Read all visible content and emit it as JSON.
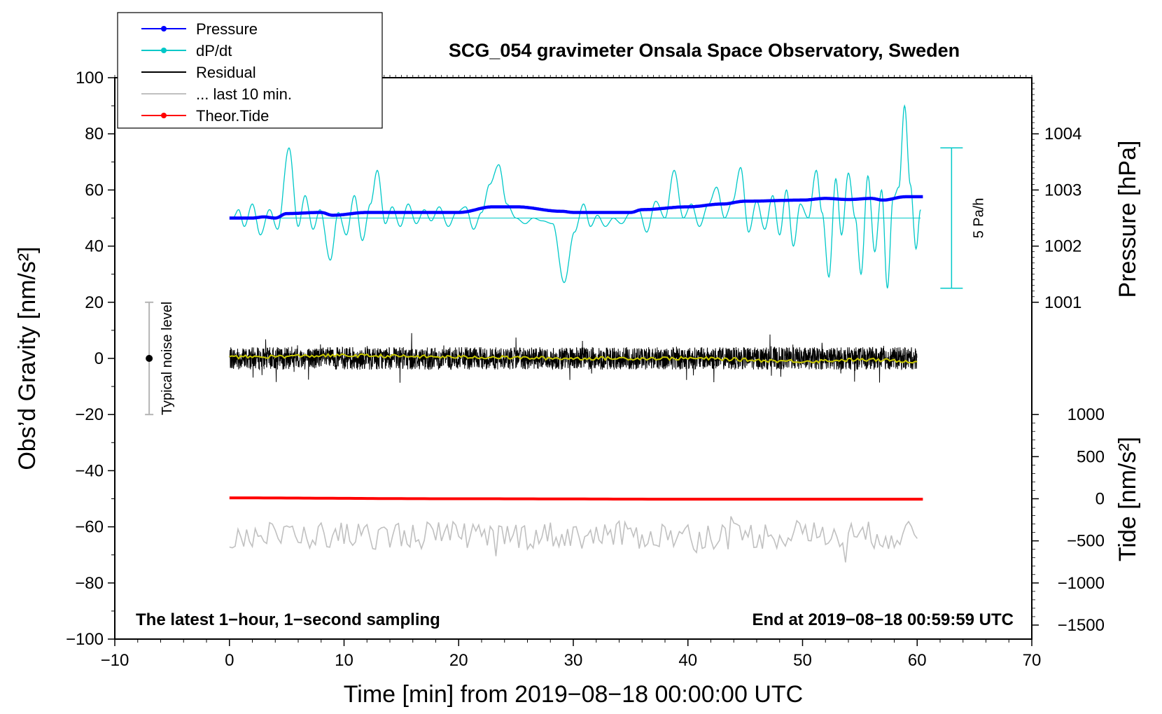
{
  "chart_data": {
    "type": "line",
    "title": "SCG_054 gravimeter Onsala Space Observatory, Sweden",
    "xlabel": "Time [min] from 2019−08−18 00:00:00 UTC",
    "ylabel_left": "Obs’d Gravity [nm/s²]",
    "ylabel_pressure": "Pressure [hPa]",
    "ylabel_tide": "Tide [nm/s²]",
    "xlim": [
      -10,
      70
    ],
    "xticks": [
      -10,
      0,
      10,
      20,
      30,
      40,
      50,
      60,
      70
    ],
    "xtick_labels": [
      "−10",
      "0",
      "10",
      "20",
      "30",
      "40",
      "50",
      "60",
      "70"
    ],
    "ylim": [
      -100,
      100
    ],
    "yticks": [
      -100,
      -80,
      -60,
      -40,
      -20,
      0,
      20,
      40,
      60,
      80,
      100
    ],
    "ytick_labels": [
      "−100",
      "−80",
      "−60",
      "−40",
      "−20",
      "0",
      "20",
      "40",
      "60",
      "80",
      "100"
    ],
    "pressure_axis": {
      "ticks": [
        1001,
        1002,
        1003,
        1004
      ],
      "tick_labels": [
        "1001",
        "1002",
        "1003",
        "1004"
      ],
      "gravity_at_1001": 20,
      "gravity_per_hpa": 20
    },
    "tide_axis": {
      "ticks": [
        -1500,
        -1000,
        -500,
        0,
        500,
        1000
      ],
      "tick_labels": [
        "−1500",
        "−1000",
        "−500",
        "0",
        "500",
        "1000"
      ],
      "gravity_at_zero": -50,
      "gravity_per_nms2": 0.03
    },
    "legend": {
      "placement": "top-left",
      "entries": [
        {
          "label": "Pressure",
          "color": "#0000ff",
          "marker": true
        },
        {
          "label": "dP/dt",
          "color": "#00c8c8",
          "marker": true
        },
        {
          "label": "Residual",
          "color": "#000000",
          "marker": false
        },
        {
          "label": "... last 10 min.",
          "color": "#c0c0c0",
          "marker": false
        },
        {
          "label": "Theor.Tide",
          "color": "#ff0000",
          "marker": true
        }
      ]
    },
    "series": [
      {
        "name": "Pressure",
        "unit": "hPa",
        "color": "#0000ff",
        "x": [
          0,
          2,
          3,
          4,
          5,
          8,
          9,
          12,
          15,
          20,
          23,
          25,
          29,
          30,
          35,
          36,
          40,
          43,
          45,
          50,
          52,
          54,
          56,
          57,
          59,
          60.5
        ],
        "values": [
          1002.5,
          1002.5,
          1002.52,
          1002.5,
          1002.58,
          1002.6,
          1002.55,
          1002.6,
          1002.6,
          1002.6,
          1002.7,
          1002.7,
          1002.62,
          1002.6,
          1002.6,
          1002.65,
          1002.7,
          1002.75,
          1002.8,
          1002.82,
          1002.85,
          1002.83,
          1002.85,
          1002.82,
          1002.88,
          1002.88
        ]
      },
      {
        "name": "dP/dt",
        "unit": "nm/s² (plot scale)",
        "color": "#00c8c8",
        "baseline": 50,
        "x": [
          0.3,
          0.8,
          1.3,
          2.0,
          2.7,
          3.5,
          4.2,
          5.2,
          6.0,
          6.6,
          7.3,
          7.9,
          8.8,
          9.5,
          10.2,
          10.9,
          11.6,
          12.3,
          12.9,
          13.6,
          14.2,
          14.9,
          15.6,
          16.3,
          17.0,
          17.6,
          18.3,
          19.1,
          19.8,
          20.6,
          21.3,
          22.0,
          22.7,
          23.5,
          24.2,
          25.0,
          25.8,
          26.5,
          27.3,
          28.2,
          29.2,
          30.1,
          30.9,
          31.5,
          32.1,
          32.8,
          33.5,
          34.2,
          35.0,
          35.7,
          36.4,
          37.2,
          38.0,
          38.8,
          39.6,
          40.3,
          41.0,
          41.8,
          42.5,
          43.2,
          43.9,
          44.6,
          45.3,
          46.0,
          46.7,
          47.4,
          48.0,
          48.6,
          49.2,
          49.8,
          50.5,
          51.2,
          51.7,
          52.3,
          52.9,
          53.4,
          54.0,
          54.6,
          55.1,
          55.7,
          56.3,
          56.9,
          57.4,
          57.9,
          58.4,
          58.9,
          59.4,
          59.9,
          60.3
        ],
        "values": [
          50,
          53,
          47,
          55,
          44,
          53,
          46,
          75,
          47,
          58,
          46,
          53,
          35,
          52,
          44,
          58,
          42,
          55,
          67,
          48,
          54,
          47,
          55,
          48,
          53,
          49,
          54,
          47,
          52,
          54,
          46,
          52,
          62,
          69,
          55,
          50,
          48,
          50,
          49,
          48,
          27,
          45,
          55,
          47,
          51,
          47,
          50,
          48,
          52,
          53,
          45,
          56,
          50,
          67,
          50,
          55,
          47,
          55,
          61,
          50,
          56,
          68,
          45,
          56,
          46,
          58,
          44,
          60,
          40,
          55,
          50,
          67,
          52,
          29,
          64,
          44,
          66,
          50,
          30,
          65,
          38,
          60,
          25,
          57,
          61,
          90,
          62,
          39,
          53
        ]
      },
      {
        "name": "Residual",
        "unit": "nm/s²",
        "color": "#000000",
        "x_range": [
          0,
          60
        ],
        "mean": 0,
        "amplitude": 4,
        "max_excursion": 9
      },
      {
        "name": "Residual smoothed",
        "unit": "nm/s²",
        "color": "#c8c800",
        "x": [
          0,
          10,
          20,
          30,
          40,
          50,
          55,
          60
        ],
        "values": [
          0.5,
          1,
          0.5,
          0,
          0,
          -1,
          -0.5,
          -1
        ]
      },
      {
        "name": "... last 10 min.",
        "unit": "nm/s² (plot scale)",
        "color": "#c0c0c0",
        "x_range": [
          0,
          60
        ],
        "mean": -63,
        "amplitude": 5,
        "max_excursion": 10
      },
      {
        "name": "Theor.Tide",
        "unit": "nm/s²",
        "color": "#ff0000",
        "x": [
          0,
          20,
          40,
          60.5
        ],
        "values": [
          10,
          0,
          -5,
          -5
        ]
      }
    ],
    "noise_marker": {
      "label": "Typical noise level",
      "x": -7,
      "center": 0,
      "low": -20,
      "high": 20
    },
    "scale_bar": {
      "label": "5 Pa/h",
      "x": 63,
      "low": 25,
      "high": 75
    },
    "annotations": {
      "bottom_left": "The latest 1−hour, 1−second sampling",
      "bottom_right": "End at 2019−08−18 00:59:59 UTC"
    }
  }
}
